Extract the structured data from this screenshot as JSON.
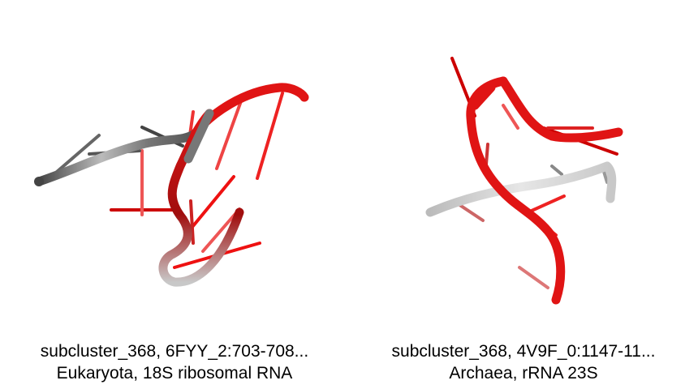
{
  "panels": [
    {
      "id": "subcluster_368, 6FYY_2:703-708...",
      "description": "Eukaryota, 18S ribosomal RNA"
    },
    {
      "id": "subcluster_368, 4V9F_0:1147-11...",
      "description": "Archaea, rRNA 23S"
    }
  ],
  "colors": {
    "strand": "#e01414",
    "strand_dark": "#8a0c0c",
    "gray": "#555555",
    "gray_light": "#d8d8d8"
  }
}
